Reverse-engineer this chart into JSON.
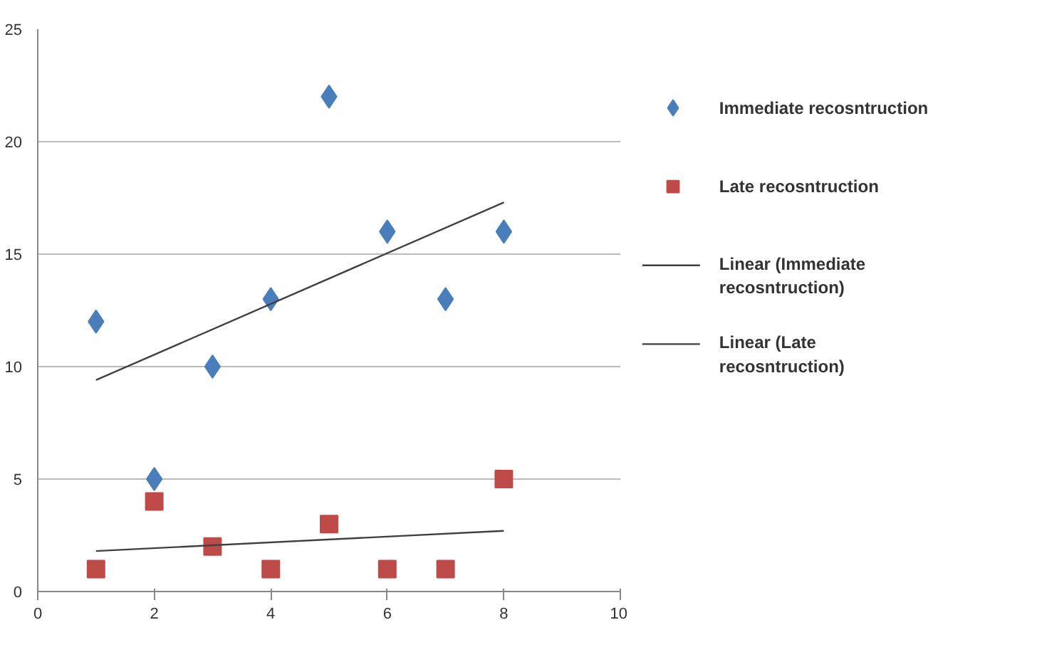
{
  "chart_data": {
    "type": "scatter",
    "xlim": [
      0,
      10
    ],
    "xticks": [
      0,
      2,
      4,
      6,
      8,
      10
    ],
    "ylim": [
      0,
      25
    ],
    "yticks": [
      0,
      5,
      10,
      15,
      20,
      25
    ],
    "grid": "y",
    "legend": "right",
    "series": [
      {
        "name": "Immediate recosntruction",
        "color": "#4a7ebb",
        "marker": "diamond",
        "x": [
          1,
          2,
          3,
          4,
          5,
          6,
          7,
          8
        ],
        "values": [
          12,
          5,
          10,
          13,
          22,
          16,
          13,
          16
        ]
      },
      {
        "name": "Late recosntruction",
        "color": "#be4b48",
        "marker": "square",
        "x": [
          1,
          2,
          3,
          4,
          5,
          6,
          7,
          8
        ],
        "values": [
          1,
          4,
          2,
          1,
          3,
          1,
          1,
          5
        ]
      },
      {
        "name": "Linear (Immediate recosntruction)",
        "type": "line",
        "color": "#404040",
        "x": [
          1,
          8
        ],
        "values": [
          9.4,
          17.3
        ]
      },
      {
        "name": "Linear (Late recosntruction)",
        "type": "line",
        "color": "#404040",
        "x": [
          1,
          8
        ],
        "values": [
          1.8,
          2.7
        ]
      }
    ]
  }
}
